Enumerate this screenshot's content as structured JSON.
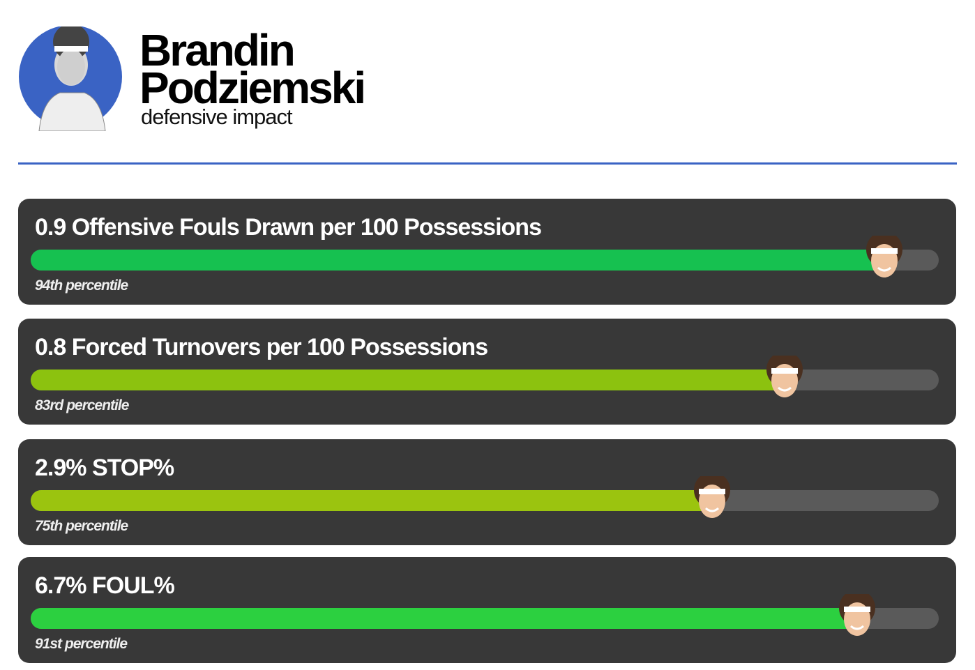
{
  "header": {
    "first_name": "Brandin",
    "last_name": "Podziemski",
    "subtitle": "defensive impact"
  },
  "scale": [
    0,
    100
  ],
  "metrics": [
    {
      "title": "0.9 Offensive Fouls Drawn per 100 Possessions",
      "value": 94,
      "value_label": "94th percentile",
      "color": "#16c150"
    },
    {
      "title": "0.8 Forced Turnovers per 100 Possessions",
      "value": 83,
      "value_label": "83rd percentile",
      "color": "#8cc20f"
    },
    {
      "title": "2.9% STOP%",
      "value": 75,
      "value_label": "75th percentile",
      "color": "#9bc40f"
    },
    {
      "title": "6.7% FOUL%",
      "value": 91,
      "value_label": "91st percentile",
      "color": "#2cd040"
    }
  ]
}
